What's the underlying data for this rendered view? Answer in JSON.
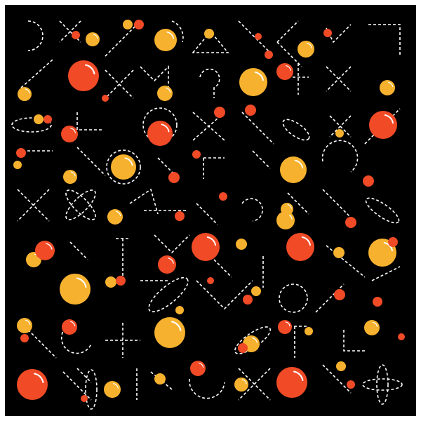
{
  "artwork": {
    "background_color": "#000000",
    "frame_color": "#ffffff",
    "palette": {
      "orange": "#f6b22e",
      "red": "#f04a26",
      "highlight": "#ffffff",
      "line": "#ffffff"
    }
  }
}
